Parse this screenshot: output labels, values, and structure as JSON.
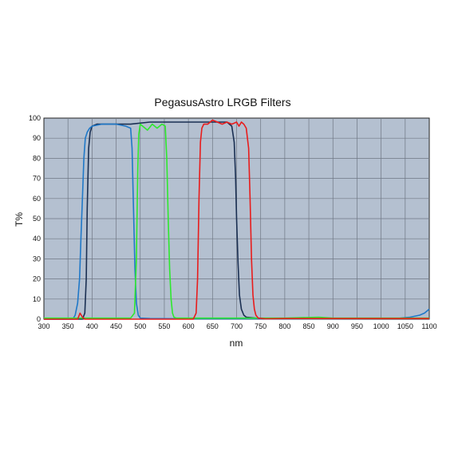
{
  "chart_data": {
    "type": "line",
    "title": "PegasusAstro LRGB Filters",
    "xlabel": "nm",
    "ylabel": "T%",
    "xlim": [
      300,
      1100
    ],
    "ylim": [
      0,
      100
    ],
    "x_ticks": [
      300,
      350,
      400,
      450,
      500,
      550,
      600,
      650,
      700,
      750,
      800,
      850,
      900,
      950,
      1000,
      1050,
      1100
    ],
    "y_ticks": [
      0,
      10,
      20,
      30,
      40,
      50,
      60,
      70,
      80,
      90,
      100
    ],
    "grid": true,
    "plot_background": "#b4c0d0",
    "series": [
      {
        "color": "#1a2f52",
        "x": [
          300,
          380,
          385,
          388,
          390,
          393,
          396,
          400,
          410,
          430,
          450,
          480,
          520,
          560,
          600,
          650,
          680,
          690,
          695,
          698,
          700,
          703,
          706,
          710,
          715,
          720,
          740,
          800,
          900,
          1000,
          1100
        ],
        "y": [
          0,
          0,
          3,
          20,
          55,
          85,
          93,
          96,
          97,
          97,
          97,
          97,
          98,
          98,
          98,
          98,
          98,
          96,
          88,
          70,
          50,
          28,
          12,
          5,
          2,
          1,
          0.5,
          0.3,
          0.3,
          0.3,
          0.3
        ]
      },
      {
        "color": "#1f78c8",
        "x": [
          300,
          360,
          365,
          370,
          374,
          377,
          380,
          383,
          386,
          390,
          395,
          400,
          420,
          450,
          470,
          480,
          483,
          486,
          489,
          492,
          496,
          500,
          520,
          600,
          800,
          1000,
          1040,
          1060,
          1080,
          1090,
          1100
        ],
        "y": [
          0,
          0,
          2,
          8,
          20,
          41,
          60,
          80,
          90,
          93,
          95,
          96,
          97,
          97,
          96,
          95,
          85,
          55,
          25,
          8,
          2,
          0.5,
          0.3,
          0.2,
          0.2,
          0.3,
          0.5,
          1,
          2,
          3,
          5
        ]
      },
      {
        "color": "#2ee82e",
        "x": [
          300,
          480,
          488,
          492,
          495,
          497,
          500,
          505,
          515,
          525,
          535,
          545,
          552,
          555,
          558,
          561,
          564,
          567,
          570,
          575,
          600,
          800,
          870,
          900,
          1100
        ],
        "y": [
          0.5,
          0.5,
          3,
          30,
          75,
          92,
          97,
          96,
          94,
          97,
          95,
          97,
          96,
          80,
          50,
          25,
          10,
          3,
          1,
          0.5,
          0.5,
          0.5,
          1,
          0.5,
          0.5
        ]
      },
      {
        "color": "#e81c1c",
        "x": [
          300,
          370,
          375,
          380,
          385,
          390,
          610,
          616,
          619,
          622,
          625,
          628,
          632,
          640,
          650,
          660,
          670,
          680,
          690,
          700,
          705,
          710,
          715,
          720,
          725,
          728,
          731,
          734,
          737,
          740,
          745,
          760,
          800,
          900,
          1100
        ],
        "y": [
          0,
          0,
          3,
          1,
          0,
          0,
          0,
          3,
          20,
          60,
          88,
          95,
          97,
          97,
          99,
          98,
          97,
          98,
          97,
          98,
          96,
          98,
          97,
          95,
          85,
          60,
          30,
          12,
          5,
          2,
          0.5,
          0.2,
          0.3,
          0.3,
          0.3
        ]
      }
    ]
  }
}
